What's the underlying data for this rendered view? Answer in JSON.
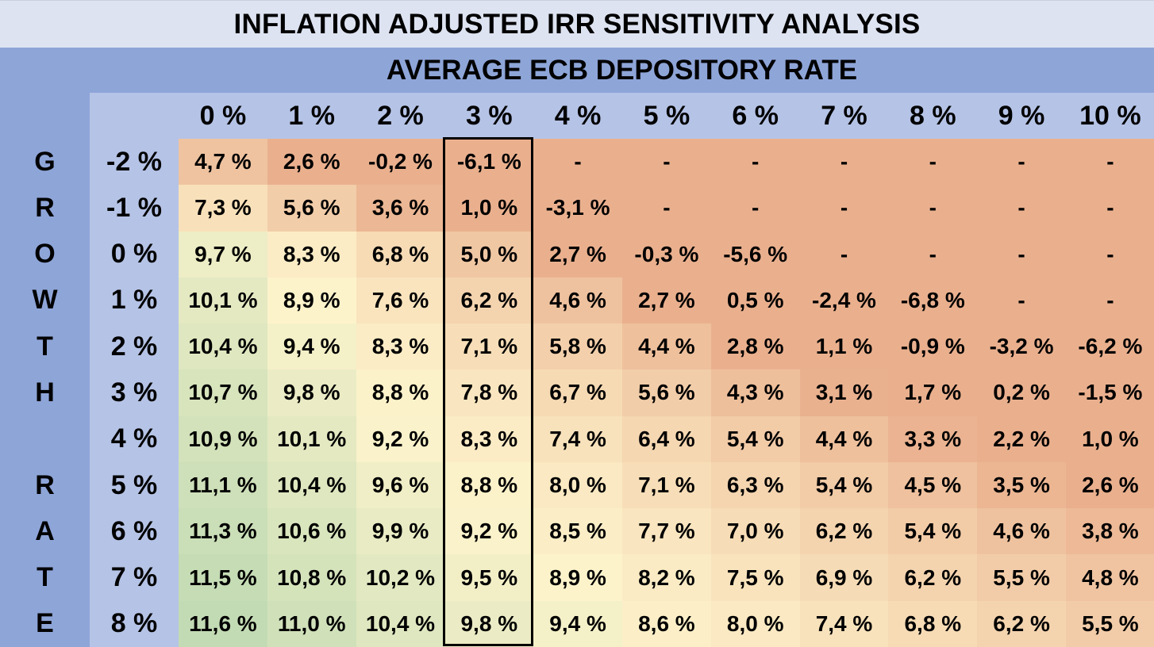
{
  "chart_data": {
    "type": "heatmap",
    "title": "INFLATION ADJUSTED IRR SENSITIVITY ANALYSIS",
    "xlabel": "AVERAGE ECB DEPOSITORY RATE",
    "ylabel": "GROWTH RATE",
    "columns": [
      "0 %",
      "1 %",
      "2 %",
      "3 %",
      "4 %",
      "5 %",
      "6 %",
      "7 %",
      "8 %",
      "9 %",
      "10 %"
    ],
    "rows": [
      "-2 %",
      "-1 %",
      "0 %",
      "1 %",
      "2 %",
      "3 %",
      "4 %",
      "5 %",
      "6 %",
      "7 %",
      "8 %"
    ],
    "cells": [
      [
        "4,7 %",
        "2,6 %",
        "-0,2 %",
        "-6,1 %",
        "-",
        "-",
        "-",
        "-",
        "-",
        "-",
        "-"
      ],
      [
        "7,3 %",
        "5,6 %",
        "3,6 %",
        "1,0 %",
        "-3,1 %",
        "-",
        "-",
        "-",
        "-",
        "-",
        "-"
      ],
      [
        "9,7 %",
        "8,3 %",
        "6,8 %",
        "5,0 %",
        "2,7 %",
        "-0,3 %",
        "-5,6 %",
        "-",
        "-",
        "-",
        "-"
      ],
      [
        "10,1 %",
        "8,9 %",
        "7,6 %",
        "6,2 %",
        "4,6 %",
        "2,7 %",
        "0,5 %",
        "-2,4 %",
        "-6,8 %",
        "-",
        "-"
      ],
      [
        "10,4 %",
        "9,4 %",
        "8,3 %",
        "7,1 %",
        "5,8 %",
        "4,4 %",
        "2,8 %",
        "1,1 %",
        "-0,9 %",
        "-3,2 %",
        "-6,2 %"
      ],
      [
        "10,7 %",
        "9,8 %",
        "8,8 %",
        "7,8 %",
        "6,7 %",
        "5,6 %",
        "4,3 %",
        "3,1 %",
        "1,7 %",
        "0,2 %",
        "-1,5 %"
      ],
      [
        "10,9 %",
        "10,1 %",
        "9,2 %",
        "8,3 %",
        "7,4 %",
        "6,4 %",
        "5,4 %",
        "4,4 %",
        "3,3 %",
        "2,2 %",
        "1,0 %"
      ],
      [
        "11,1 %",
        "10,4 %",
        "9,6 %",
        "8,8 %",
        "8,0 %",
        "7,1 %",
        "6,3 %",
        "5,4 %",
        "4,5 %",
        "3,5 %",
        "2,6 %"
      ],
      [
        "11,3 %",
        "10,6 %",
        "9,9 %",
        "9,2 %",
        "8,5 %",
        "7,7 %",
        "7,0 %",
        "6,2 %",
        "5,4 %",
        "4,6 %",
        "3,8 %"
      ],
      [
        "11,5 %",
        "10,8 %",
        "10,2 %",
        "9,5 %",
        "8,9 %",
        "8,2 %",
        "7,5 %",
        "6,9 %",
        "6,2 %",
        "5,5 %",
        "4,8 %"
      ],
      [
        "11,6 %",
        "11,0 %",
        "10,4 %",
        "9,8 %",
        "9,4 %",
        "8,6 %",
        "8,0 %",
        "7,4 %",
        "6,8 %",
        "6,2 %",
        "5,5 %"
      ]
    ],
    "vertical_label_letters": [
      "G",
      "R",
      "O",
      "W",
      "T",
      "H",
      "",
      "R",
      "A",
      "T",
      "E"
    ],
    "highlighted_column": "3 %",
    "colors": {
      "title_bg": "#dde3f1",
      "band_dark": "#8ea5d8",
      "band_light": "#b5c3e6",
      "scale_low": "#eab08e",
      "scale_mid": "#fdf4cc",
      "scale_high": "#c3dbb4"
    }
  }
}
